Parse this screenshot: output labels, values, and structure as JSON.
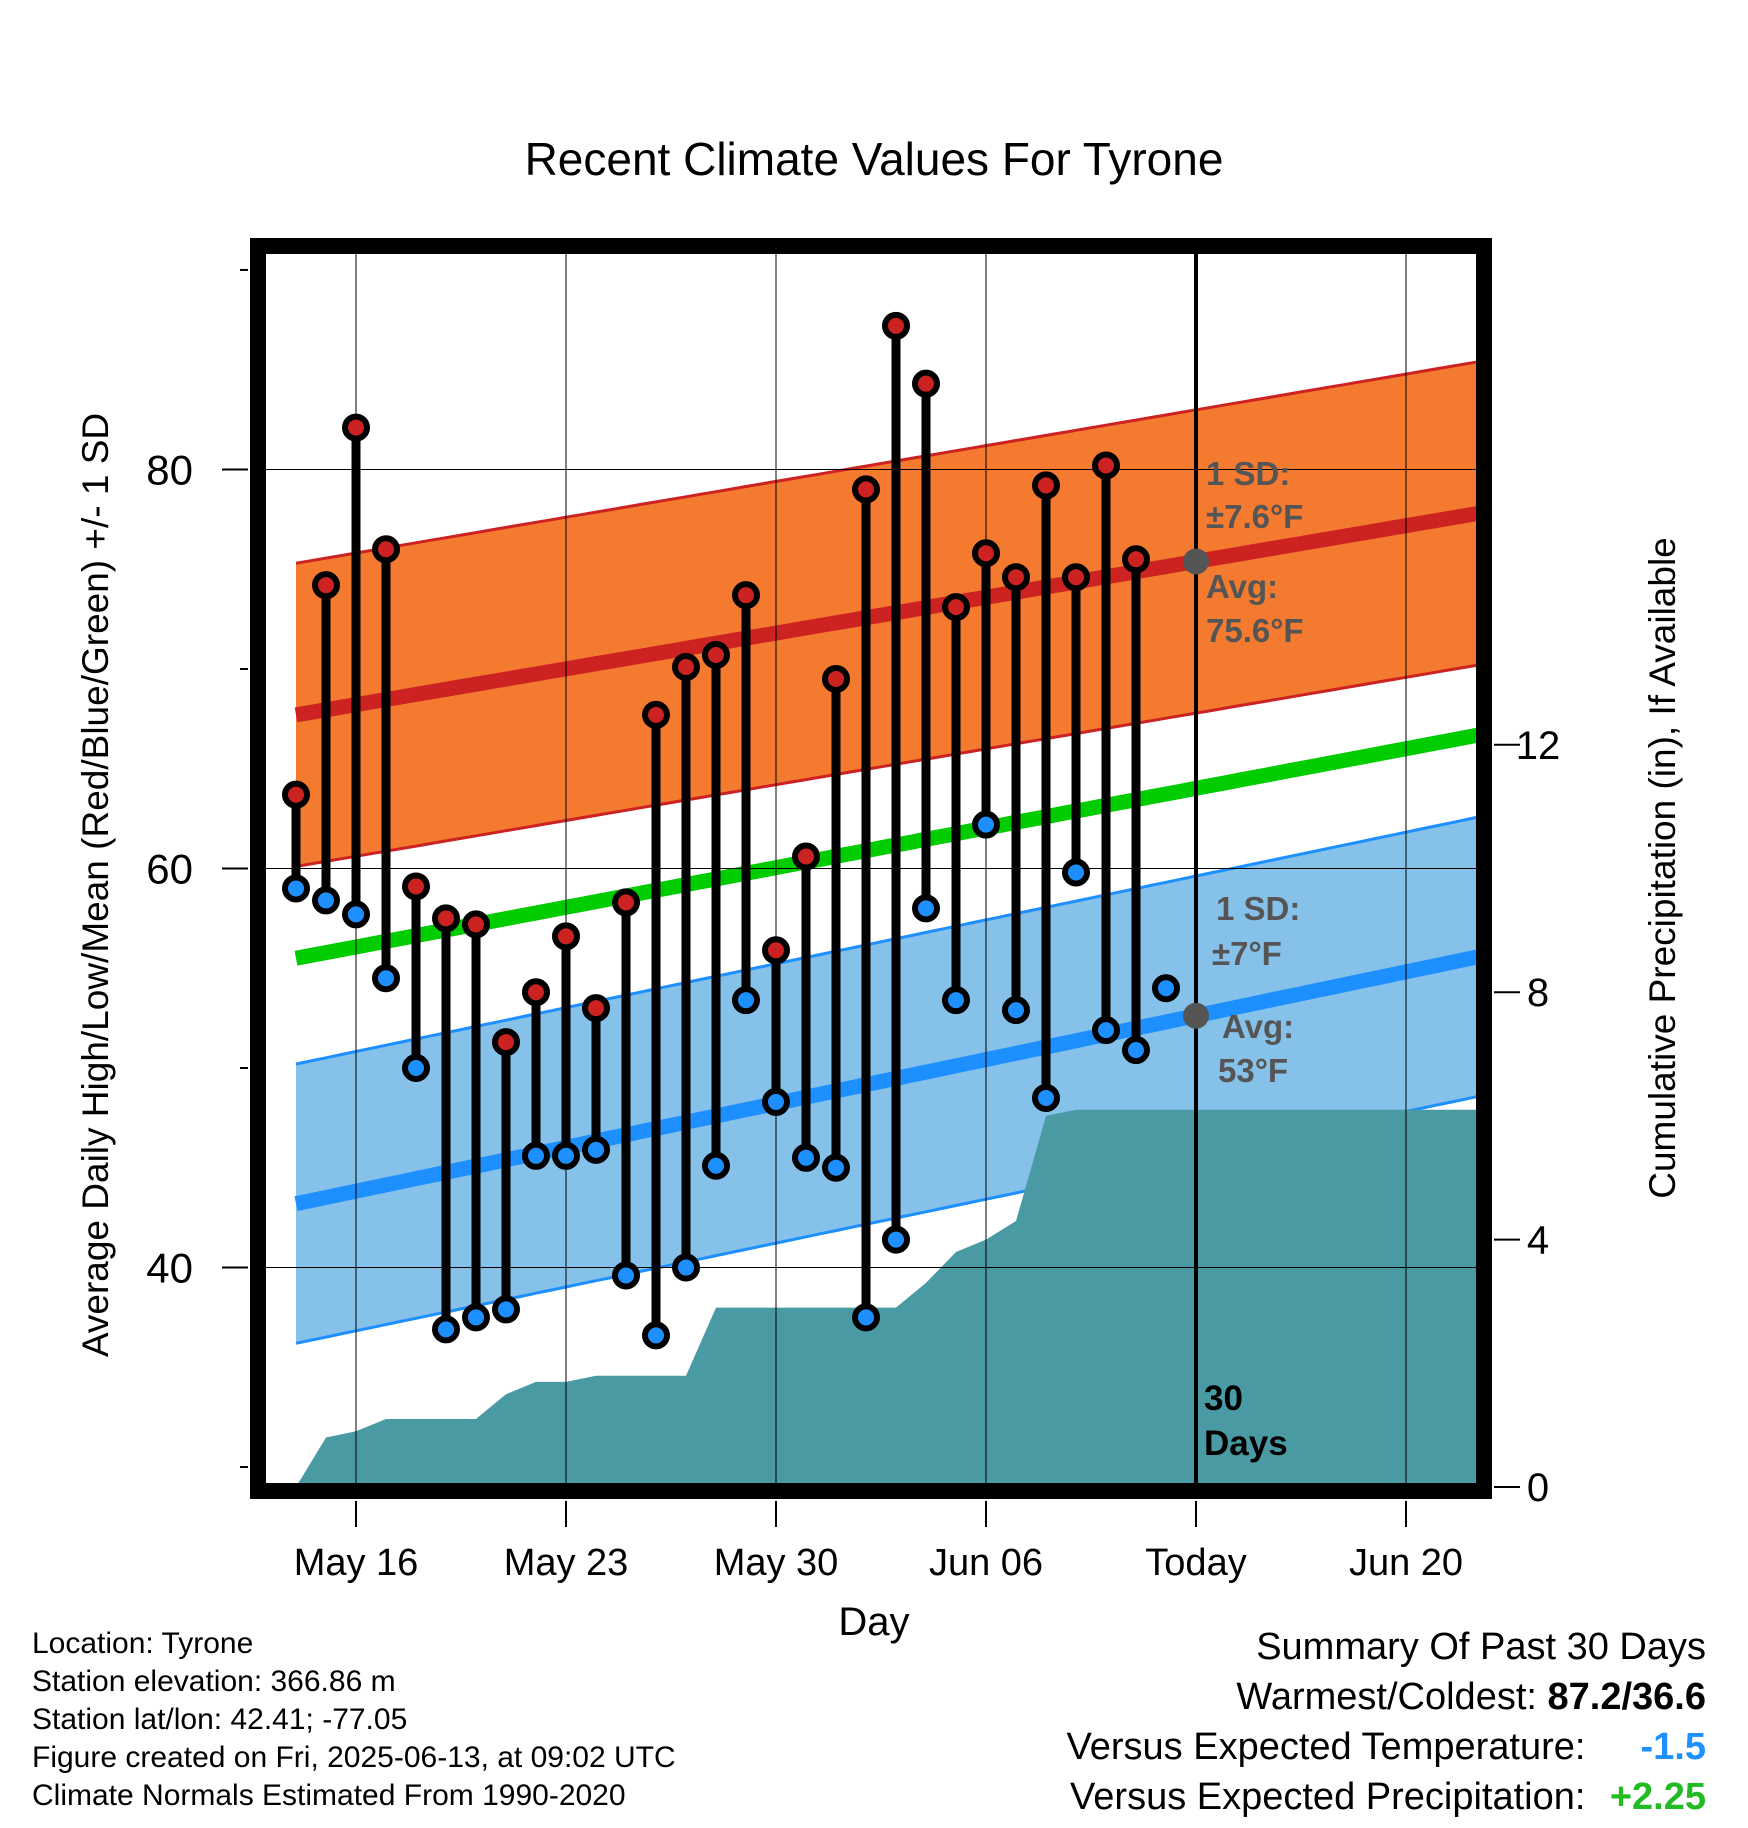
{
  "chart_data": {
    "type": "line",
    "title": "Recent Climate Values For Tyrone",
    "xlabel": "Day",
    "ylabel": "Average Daily High/Low/Mean (Red/Blue/Green) +/- 1 SD",
    "y2label": "Cumulative Precipitation (in), If Available",
    "ylim": [
      29,
      91
    ],
    "y2lim": [
      0,
      20
    ],
    "yticks": [
      40,
      60,
      80
    ],
    "y2ticks": [
      0,
      4,
      8,
      12
    ],
    "x_dates": [
      "May 14",
      "May 15",
      "May 16",
      "May 17",
      "May 18",
      "May 19",
      "May 20",
      "May 21",
      "May 22",
      "May 23",
      "May 24",
      "May 25",
      "May 26",
      "May 27",
      "May 28",
      "May 29",
      "May 30",
      "May 31",
      "Jun 01",
      "Jun 02",
      "Jun 03",
      "Jun 04",
      "Jun 05",
      "Jun 06",
      "Jun 07",
      "Jun 08",
      "Jun 09",
      "Jun 10",
      "Jun 11",
      "Jun 12"
    ],
    "x_tick_labels": [
      "May 16",
      "May 23",
      "May 30",
      "Jun 06",
      "Today",
      "Jun 20"
    ],
    "x_tick_days": [
      2,
      9,
      16,
      23,
      30,
      37
    ],
    "today_label": "30\nDays",
    "grid": true,
    "series": [
      {
        "name": "High",
        "color": "#cc2222",
        "values": [
          63.7,
          74.2,
          82.1,
          76.0,
          59.1,
          57.5,
          57.2,
          51.3,
          53.8,
          56.6,
          53.0,
          58.3,
          67.7,
          70.1,
          70.7,
          73.7,
          55.9,
          60.6,
          69.5,
          79.0,
          87.2,
          84.3,
          73.1,
          75.8,
          74.6,
          79.2,
          74.6,
          80.2,
          75.5,
          null
        ]
      },
      {
        "name": "Low",
        "color": "#2090f0",
        "values": [
          59.0,
          58.4,
          57.7,
          54.5,
          50.0,
          36.9,
          37.5,
          37.9,
          45.6,
          45.6,
          45.9,
          39.6,
          36.6,
          40.0,
          45.1,
          53.4,
          48.3,
          45.5,
          45.0,
          37.5,
          41.4,
          58.0,
          53.4,
          62.2,
          52.9,
          48.5,
          59.8,
          51.9,
          50.9,
          54.0
        ]
      }
    ],
    "normals": {
      "avg_high_start": 67.7,
      "avg_high_end": 77.9,
      "avg_low_start": 43.2,
      "avg_low_end": 55.7,
      "avg_mean_start": 55.5,
      "avg_mean_end": 66.8,
      "high_sd": 7.6,
      "low_sd": 7.0
    },
    "precip_cumulative": [
      0.0,
      0.8,
      0.9,
      1.1,
      1.1,
      1.1,
      1.1,
      1.5,
      1.7,
      1.7,
      1.8,
      1.8,
      1.8,
      1.8,
      2.9,
      2.9,
      2.9,
      2.9,
      2.9,
      2.9,
      2.9,
      3.3,
      3.8,
      4.0,
      4.3,
      6.0,
      6.1,
      6.1,
      6.1,
      6.1
    ],
    "annotations": {
      "high_sd_title": "1 SD:",
      "high_sd_value": "±7.6°F",
      "high_avg_title": "Avg:",
      "high_avg_value": "75.6°F",
      "low_sd_title": "1 SD:",
      "low_sd_value": "±7°F",
      "low_avg_title": "Avg:",
      "low_avg_value": "53°F"
    },
    "colors": {
      "high_band": "#f47a2f",
      "high_line": "#cc2222",
      "low_band": "#85c1e9",
      "low_line": "#1e8fff",
      "mean_line": "#00cc00",
      "precip": "#4a9aa4",
      "today_marker": "#555555"
    }
  },
  "info": {
    "location": "Location: Tyrone",
    "elevation": "Station elevation: 366.86 m",
    "latlon": "Station lat/lon: 42.41; -77.05",
    "created": "Figure created on Fri, 2025-06-13, at 09:02 UTC",
    "normals": "Climate Normals Estimated From 1990-2020"
  },
  "summary": {
    "title": "Summary Of Past 30 Days",
    "warm_cold_label": "Warmest/Coldest:",
    "warm_cold_value": "87.2/36.6",
    "temp_label": "Versus Expected Temperature:",
    "temp_value": "-1.5",
    "precip_label": "Versus Expected Precipitation:",
    "precip_value": "+2.25"
  }
}
